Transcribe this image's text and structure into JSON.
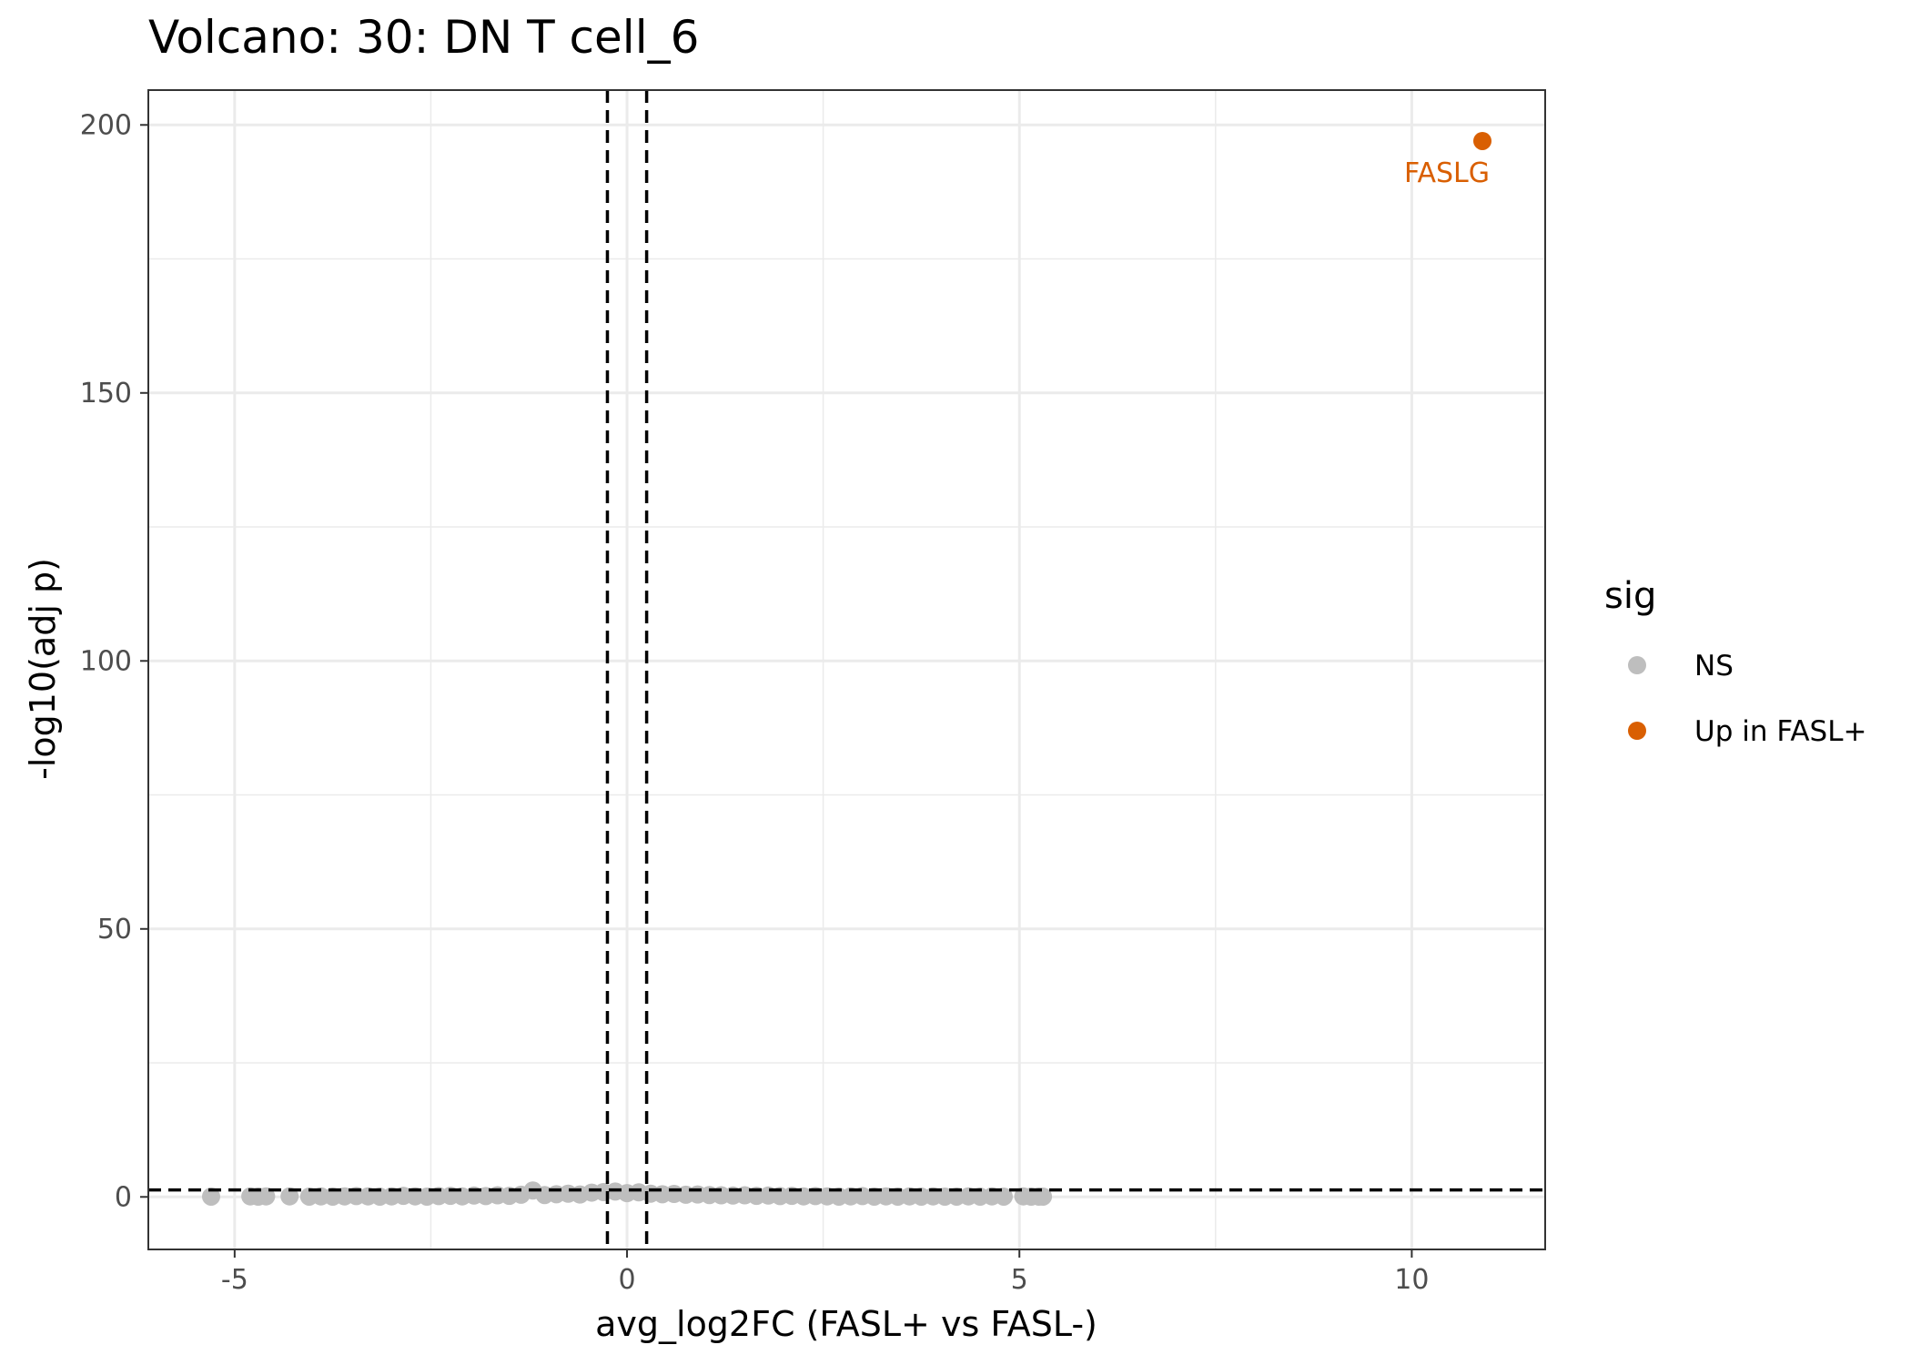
{
  "chart_data": {
    "type": "scatter",
    "title": "Volcano: 30: DN T cell_6",
    "xlabel": "avg_log2FC (FASL+ vs FASL-)",
    "ylabel": "-log10(adj p)",
    "xlim": [
      -6.1,
      11.7
    ],
    "ylim": [
      -9.8,
      206.5
    ],
    "x_ticks": [
      -5,
      0,
      5,
      10
    ],
    "x_tick_labels": [
      "-5",
      "0",
      "5",
      "10"
    ],
    "y_ticks": [
      0,
      50,
      100,
      150,
      200
    ],
    "y_tick_labels": [
      "0",
      "50",
      "100",
      "150",
      "200"
    ],
    "grid": true,
    "thresholds": {
      "log2fc": [
        -0.25,
        0.25
      ],
      "neg_log10_padj": 1.3
    },
    "legend": {
      "title": "sig",
      "position": "right",
      "entries": [
        {
          "label": "NS",
          "color": "#bebebe"
        },
        {
          "label": "Up in FASL+",
          "color": "#d95f02"
        }
      ]
    },
    "series": [
      {
        "name": "NS",
        "color": "#bebebe",
        "x": [
          -5.3,
          -4.8,
          -4.7,
          -4.6,
          -4.3,
          -4.05,
          -3.9,
          -3.75,
          -3.6,
          -3.45,
          -3.3,
          -3.15,
          -3.0,
          -2.85,
          -2.7,
          -2.55,
          -2.4,
          -2.25,
          -2.1,
          -1.95,
          -1.8,
          -1.65,
          -1.5,
          -1.35,
          -1.2,
          -1.05,
          -0.9,
          -0.75,
          -0.6,
          -0.45,
          -0.3,
          -0.15,
          0.0,
          0.15,
          0.3,
          0.45,
          0.6,
          0.75,
          0.9,
          1.05,
          1.2,
          1.35,
          1.5,
          1.65,
          1.8,
          1.95,
          2.1,
          2.25,
          2.4,
          2.55,
          2.7,
          2.85,
          3.0,
          3.15,
          3.3,
          3.45,
          3.6,
          3.75,
          3.9,
          4.05,
          4.2,
          4.35,
          4.5,
          4.65,
          4.8,
          5.05,
          5.15,
          5.25,
          5.3
        ],
        "y": [
          0.05,
          0.1,
          0.05,
          0.1,
          0.1,
          0.05,
          0.1,
          0.05,
          0.1,
          0.15,
          0.1,
          0.05,
          0.1,
          0.2,
          0.1,
          0.05,
          0.15,
          0.2,
          0.1,
          0.25,
          0.15,
          0.3,
          0.2,
          0.4,
          1.2,
          0.35,
          0.5,
          0.6,
          0.45,
          0.8,
          0.9,
          1.0,
          0.7,
          0.85,
          0.6,
          0.5,
          0.55,
          0.4,
          0.45,
          0.35,
          0.3,
          0.25,
          0.3,
          0.2,
          0.25,
          0.15,
          0.2,
          0.1,
          0.15,
          0.1,
          0.05,
          0.1,
          0.15,
          0.05,
          0.1,
          0.05,
          0.1,
          0.05,
          0.1,
          0.05,
          0.05,
          0.1,
          0.05,
          0.1,
          0.05,
          0.1,
          0.05,
          0.05,
          0.05
        ]
      },
      {
        "name": "Up in FASL+",
        "color": "#d95f02",
        "x": [
          10.9
        ],
        "y": [
          197
        ],
        "labels": [
          "FASLG"
        ]
      }
    ]
  }
}
